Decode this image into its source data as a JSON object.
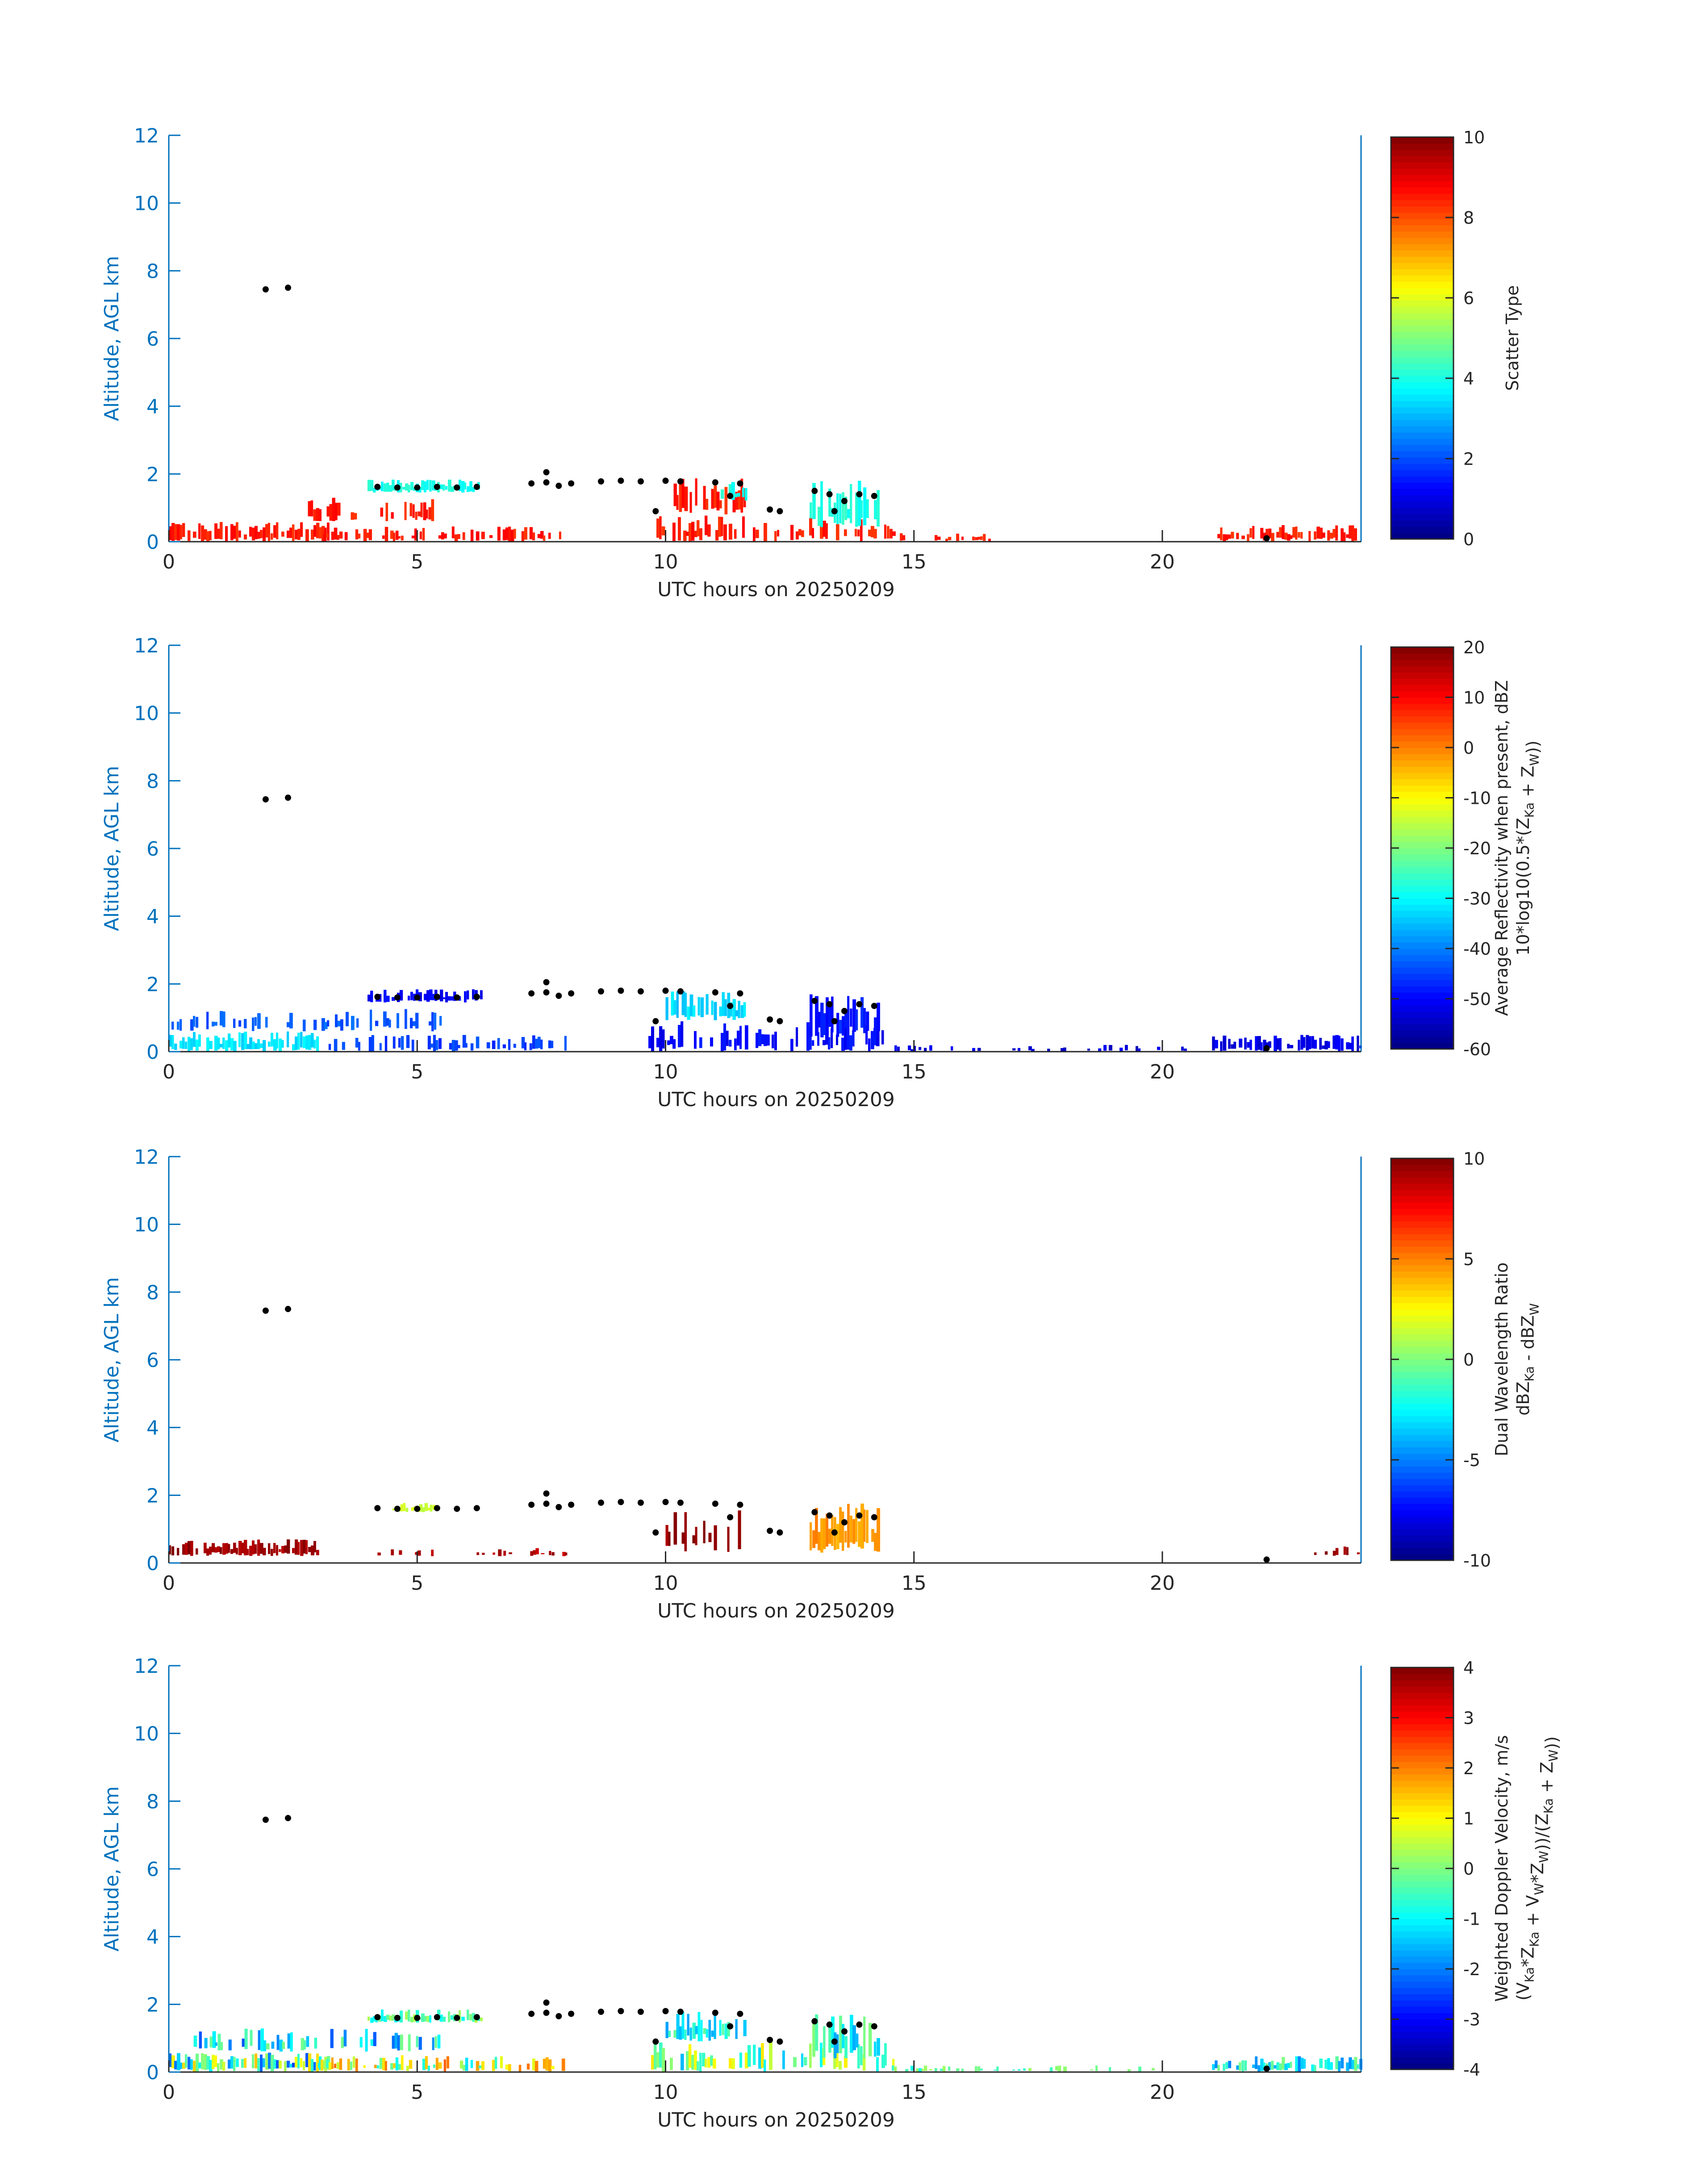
{
  "figure": {
    "x_range": [
      0,
      24
    ],
    "y_range": [
      0,
      12
    ],
    "x_ticks": [
      "0",
      "5",
      "10",
      "15",
      "20"
    ],
    "y_ticks": [
      "0",
      "2",
      "4",
      "6",
      "8",
      "10",
      "12"
    ],
    "colors": {
      "axis_blue": "#0072BD",
      "axis_dark": "#262626",
      "cloud_top_marker": "#000000"
    }
  },
  "chart_data": [
    {
      "type": "heatmap",
      "title": "",
      "xlabel": "UTC hours on 20250209",
      "ylabel": "Altitude, AGL km",
      "xlim": [
        0,
        24
      ],
      "ylim": [
        0,
        12
      ],
      "colorbar": {
        "label_lines": [
          "Scatter Type"
        ],
        "range": [
          0,
          10
        ],
        "ticks": [
          "0",
          "2",
          "4",
          "6",
          "8",
          "10"
        ]
      },
      "layers": [
        {
          "x0": 0,
          "x1": 3.2,
          "y0": 0,
          "y1": 0.6,
          "value": 8.5,
          "density": 0.8
        },
        {
          "x0": 2.8,
          "x1": 5.3,
          "y0": 0.6,
          "y1": 1.3,
          "value": 8.5,
          "density": 0.5
        },
        {
          "x0": 3.0,
          "x1": 8.0,
          "y0": 0.0,
          "y1": 0.45,
          "value": 8.5,
          "density": 0.55
        },
        {
          "x0": 4.0,
          "x1": 6.3,
          "y0": 1.45,
          "y1": 1.85,
          "value": 4.0,
          "density": 0.9
        },
        {
          "x0": 10.0,
          "x1": 11.6,
          "y0": 0.8,
          "y1": 1.9,
          "value": 8.5,
          "density": 0.75
        },
        {
          "x0": 9.6,
          "x1": 14.6,
          "y0": 0.0,
          "y1": 0.8,
          "value": 8.5,
          "density": 0.5
        },
        {
          "x0": 12.9,
          "x1": 14.3,
          "y0": 0.4,
          "y1": 1.8,
          "value": 4.0,
          "density": 0.75
        },
        {
          "x0": 11.0,
          "x1": 11.6,
          "y0": 1.2,
          "y1": 1.8,
          "value": 4.0,
          "density": 0.6
        },
        {
          "x0": 14.5,
          "x1": 16.5,
          "y0": 0.0,
          "y1": 0.25,
          "value": 8.5,
          "density": 0.35
        },
        {
          "x0": 21.0,
          "x1": 24.0,
          "y0": 0.0,
          "y1": 0.5,
          "value": 8.5,
          "density": 0.8
        }
      ]
    },
    {
      "type": "heatmap",
      "title": "",
      "xlabel": "UTC hours on 20250209",
      "ylabel": "Altitude, AGL km",
      "xlim": [
        0,
        24
      ],
      "ylim": [
        0,
        12
      ],
      "colorbar": {
        "label_lines": [
          "Average Reflectivity when present, dBZ",
          "10*log10(0.5*(Z_Ka + Z_W))"
        ],
        "range": [
          -60,
          20
        ],
        "ticks": [
          "-60",
          "-50",
          "-40",
          "-30",
          "-20",
          "-10",
          "0",
          "10",
          "20"
        ]
      },
      "layers": [
        {
          "x0": 0,
          "x1": 3.0,
          "y0": 0,
          "y1": 0.6,
          "value": -32,
          "density": 0.85
        },
        {
          "x0": 0,
          "x1": 5.5,
          "y0": 0.6,
          "y1": 1.3,
          "value": -43,
          "density": 0.5
        },
        {
          "x0": 3.0,
          "x1": 8.0,
          "y0": 0.0,
          "y1": 0.5,
          "value": -45,
          "density": 0.55
        },
        {
          "x0": 4.0,
          "x1": 6.3,
          "y0": 1.45,
          "y1": 1.85,
          "value": -50,
          "density": 0.9
        },
        {
          "x0": 10.0,
          "x1": 11.6,
          "y0": 0.9,
          "y1": 1.8,
          "value": -33,
          "density": 0.8
        },
        {
          "x0": 9.6,
          "x1": 14.6,
          "y0": 0.0,
          "y1": 0.9,
          "value": -50,
          "density": 0.5
        },
        {
          "x0": 12.9,
          "x1": 14.3,
          "y0": 0.4,
          "y1": 1.8,
          "value": -48,
          "density": 0.75
        },
        {
          "x0": 14.5,
          "x1": 20.5,
          "y0": 0.0,
          "y1": 0.2,
          "value": -53,
          "density": 0.25
        },
        {
          "x0": 21.0,
          "x1": 24.0,
          "y0": 0.0,
          "y1": 0.5,
          "value": -52,
          "density": 0.8
        }
      ]
    },
    {
      "type": "heatmap",
      "title": "",
      "xlabel": "UTC hours on 20250209",
      "ylabel": "Altitude, AGL km",
      "xlim": [
        0,
        24
      ],
      "ylim": [
        0,
        12
      ],
      "colorbar": {
        "label_lines": [
          "Dual Wavelength Ratio",
          "dBZ_Ka - dBZ_W"
        ],
        "range": [
          -10,
          10
        ],
        "ticks": [
          "-10",
          "-5",
          "0",
          "5",
          "10"
        ]
      },
      "layers": [
        {
          "x0": 0,
          "x1": 3.0,
          "y0": 0.2,
          "y1": 0.7,
          "value": 9.5,
          "density": 0.85
        },
        {
          "x0": 4.2,
          "x1": 8.0,
          "y0": 0.2,
          "y1": 0.45,
          "value": 9.0,
          "density": 0.3
        },
        {
          "x0": 4.5,
          "x1": 5.5,
          "y0": 1.5,
          "y1": 1.8,
          "value": 1.5,
          "density": 0.8
        },
        {
          "x0": 10.0,
          "x1": 11.5,
          "y0": 0.3,
          "y1": 1.6,
          "value": 9.5,
          "density": 0.35
        },
        {
          "x0": 12.9,
          "x1": 14.3,
          "y0": 0.3,
          "y1": 1.8,
          "value": 4.5,
          "density": 0.85
        },
        {
          "x0": 23.0,
          "x1": 24.0,
          "y0": 0.2,
          "y1": 0.5,
          "value": 9.5,
          "density": 0.4
        }
      ]
    },
    {
      "type": "heatmap",
      "title": "",
      "xlabel": "UTC hours on 20250209",
      "ylabel": "Altitude, AGL km",
      "xlim": [
        0,
        24
      ],
      "ylim": [
        0,
        12
      ],
      "colorbar": {
        "label_lines": [
          "Weighted Doppler Velocity, m/s",
          "(V_Ka*Z_Ka + V_W*Z_W))/(Z_Ka + Z_W))"
        ],
        "range": [
          -4,
          4
        ],
        "ticks": [
          "-4",
          "-3",
          "-2",
          "-1",
          "0",
          "1",
          "2",
          "3",
          "4"
        ]
      },
      "layers": [
        {
          "x0": 0,
          "x1": 3.2,
          "y0": 0,
          "y1": 0.6,
          "value": -0.5,
          "density": 0.85,
          "spread": 2.0
        },
        {
          "x0": 0.5,
          "x1": 5.5,
          "y0": 0.6,
          "y1": 1.3,
          "value": -1.2,
          "density": 0.5,
          "spread": 1.2
        },
        {
          "x0": 3.0,
          "x1": 8.0,
          "y0": 0.0,
          "y1": 0.5,
          "value": 0.5,
          "density": 0.55,
          "spread": 1.8
        },
        {
          "x0": 4.0,
          "x1": 6.3,
          "y0": 1.45,
          "y1": 1.85,
          "value": -0.3,
          "density": 0.9,
          "spread": 0.8
        },
        {
          "x0": 10.0,
          "x1": 11.6,
          "y0": 0.9,
          "y1": 1.8,
          "value": -1.0,
          "density": 0.8,
          "spread": 0.8
        },
        {
          "x0": 9.6,
          "x1": 14.6,
          "y0": 0.0,
          "y1": 0.9,
          "value": -0.2,
          "density": 0.5,
          "spread": 1.4
        },
        {
          "x0": 12.9,
          "x1": 14.3,
          "y0": 0.4,
          "y1": 1.8,
          "value": -0.8,
          "density": 0.75,
          "spread": 0.9
        },
        {
          "x0": 14.5,
          "x1": 20.0,
          "y0": 0.0,
          "y1": 0.2,
          "value": -0.3,
          "density": 0.25,
          "spread": 0.6
        },
        {
          "x0": 21.0,
          "x1": 24.0,
          "y0": 0.0,
          "y1": 0.5,
          "value": -1.0,
          "density": 0.8,
          "spread": 1.0
        }
      ]
    }
  ],
  "cloud_top_points": [
    [
      1.95,
      7.45
    ],
    [
      2.4,
      7.5
    ],
    [
      4.2,
      1.62
    ],
    [
      4.6,
      1.6
    ],
    [
      5.0,
      1.6
    ],
    [
      5.4,
      1.62
    ],
    [
      5.8,
      1.6
    ],
    [
      6.2,
      1.62
    ],
    [
      7.3,
      1.72
    ],
    [
      7.6,
      1.75
    ],
    [
      7.85,
      1.65
    ],
    [
      8.1,
      1.72
    ],
    [
      7.6,
      2.05
    ],
    [
      8.7,
      1.78
    ],
    [
      9.1,
      1.8
    ],
    [
      9.5,
      1.78
    ],
    [
      10.0,
      1.8
    ],
    [
      10.3,
      1.78
    ],
    [
      9.8,
      0.9
    ],
    [
      11.0,
      1.75
    ],
    [
      11.5,
      1.72
    ],
    [
      11.3,
      1.35
    ],
    [
      12.1,
      0.95
    ],
    [
      12.3,
      0.9
    ],
    [
      13.0,
      1.5
    ],
    [
      13.3,
      1.4
    ],
    [
      13.6,
      1.2
    ],
    [
      13.9,
      1.4
    ],
    [
      14.2,
      1.35
    ],
    [
      13.4,
      0.9
    ],
    [
      22.1,
      0.1
    ]
  ]
}
